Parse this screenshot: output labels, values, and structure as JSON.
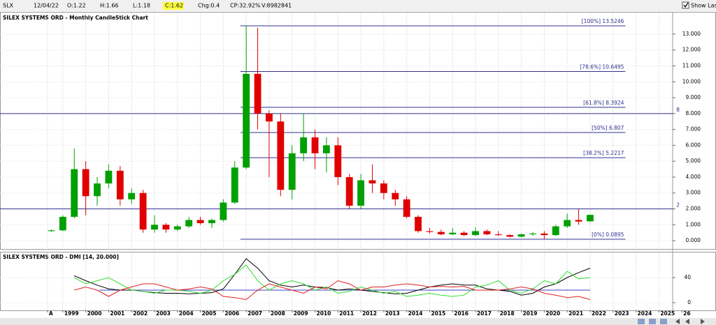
{
  "header": {
    "symbol": "SLX",
    "date": "12/04/22",
    "open": "O:1.22",
    "high": "H:1.66",
    "low": "L:1.18",
    "close": "C:1.62",
    "change": "Chg:0.4",
    "change_pct": "CP:32.92%",
    "volume": "V:8982841",
    "show_last": "Show Last"
  },
  "chart_data": [
    {
      "type": "candlestick",
      "title": "SILEX SYSTEMS ORD - Monthly CandleStick Chart",
      "up_color": "#00a000",
      "down_color": "#e00000",
      "x": [
        1998.5,
        1999,
        1999.5,
        2000,
        2000.5,
        2001,
        2001.5,
        2002,
        2002.5,
        2003,
        2003.5,
        2004,
        2004.5,
        2005,
        2005.5,
        2006,
        2006.5,
        2007,
        2007.5,
        2008,
        2008.5,
        2009,
        2009.5,
        2010,
        2010.5,
        2011,
        2011.5,
        2012,
        2012.5,
        2013,
        2013.5,
        2014,
        2014.5,
        2015,
        2015.5,
        2016,
        2016.5,
        2017,
        2017.5,
        2018,
        2018.5,
        2019,
        2019.5,
        2020,
        2020.5,
        2021,
        2021.5,
        2022
      ],
      "open": [
        0.6,
        0.65,
        1.5,
        4.5,
        2.8,
        3.6,
        4.4,
        2.6,
        3.0,
        0.7,
        1.0,
        0.7,
        0.9,
        1.3,
        1.1,
        1.3,
        2.4,
        4.6,
        10.5,
        8.0,
        7.5,
        3.2,
        5.5,
        6.5,
        5.5,
        6.0,
        4.0,
        2.2,
        3.8,
        3.6,
        3.0,
        2.6,
        1.5,
        0.6,
        0.55,
        0.4,
        0.5,
        0.35,
        0.6,
        0.4,
        0.35,
        0.25,
        0.4,
        0.45,
        0.35,
        0.9,
        1.3,
        1.22
      ],
      "high": [
        0.7,
        1.6,
        5.8,
        5.0,
        4.0,
        4.8,
        4.7,
        3.3,
        3.2,
        1.6,
        1.1,
        1.0,
        1.5,
        1.5,
        1.4,
        2.6,
        5.0,
        13.5246,
        13.4,
        8.2,
        8.0,
        6.0,
        8.0,
        7.0,
        6.5,
        6.5,
        4.2,
        4.2,
        4.8,
        3.8,
        3.2,
        2.8,
        1.6,
        0.8,
        0.7,
        0.8,
        0.6,
        0.85,
        0.7,
        0.6,
        0.4,
        0.45,
        0.55,
        0.6,
        1.0,
        1.7,
        2.0,
        1.66
      ],
      "low": [
        0.55,
        0.6,
        1.4,
        1.6,
        2.2,
        3.3,
        2.2,
        2.3,
        0.5,
        0.5,
        0.5,
        0.6,
        0.8,
        1.0,
        0.8,
        1.2,
        2.3,
        4.5,
        7.0,
        4.0,
        2.8,
        2.6,
        5.0,
        4.5,
        4.3,
        3.5,
        2.0,
        2.0,
        3.0,
        2.6,
        2.2,
        1.4,
        0.5,
        0.45,
        0.35,
        0.35,
        0.3,
        0.3,
        0.35,
        0.3,
        0.2,
        0.2,
        0.3,
        0.0895,
        0.3,
        0.8,
        1.0,
        1.18
      ],
      "close": [
        0.65,
        1.5,
        4.5,
        2.8,
        3.6,
        4.4,
        2.6,
        3.0,
        0.7,
        1.0,
        0.7,
        0.9,
        1.3,
        1.1,
        1.3,
        2.4,
        4.6,
        10.5,
        8.0,
        7.5,
        3.2,
        5.5,
        6.5,
        5.5,
        6.0,
        4.0,
        2.2,
        3.8,
        3.6,
        3.0,
        2.6,
        1.5,
        0.6,
        0.55,
        0.4,
        0.5,
        0.35,
        0.6,
        0.4,
        0.35,
        0.25,
        0.4,
        0.45,
        0.35,
        0.9,
        1.3,
        1.2,
        1.62
      ],
      "xlim": [
        1996.26,
        2025.6
      ],
      "xticks": [
        {
          "value": 1998.33,
          "label": "A"
        },
        1999,
        2000,
        2001,
        2002,
        2003,
        2004,
        2005,
        2006,
        2007,
        2008,
        2009,
        2010,
        2011,
        2012,
        2013,
        2014,
        2015,
        2016,
        2017,
        2018,
        2019,
        2020,
        2021,
        2022,
        2023,
        2024,
        2025,
        {
          "value": 2026,
          "label": "26"
        }
      ],
      "ylim": [
        -0.48,
        13.83
      ],
      "yticks": [
        {
          "value": 0,
          "label": "0.000"
        },
        {
          "value": 1,
          "label": "1.000"
        },
        {
          "value": 2,
          "label": "2.000"
        },
        {
          "value": 3,
          "label": "3.000"
        },
        {
          "value": 4,
          "label": "4.000"
        },
        {
          "value": 5,
          "label": "5.000"
        },
        {
          "value": 6,
          "label": "6.000"
        },
        {
          "value": 7,
          "label": "7.000"
        },
        {
          "value": 8,
          "label": "8.000"
        },
        {
          "value": 9,
          "label": "9.000"
        },
        {
          "value": 10,
          "label": "10.000"
        },
        {
          "value": 11,
          "label": "11.000"
        },
        {
          "value": 12,
          "label": "12.000"
        },
        {
          "value": 13,
          "label": "13.000"
        }
      ],
      "levels": [
        {
          "label": "[100%] 13.5246",
          "value": 13.5246
        },
        {
          "label": "[78.6%] 10.6495",
          "value": 10.6495
        },
        {
          "label": "[61.8%] 8.3924",
          "value": 8.3924
        },
        {
          "label": "[50%] 6.807",
          "value": 6.807
        },
        {
          "label": "[38.2%] 5.2217",
          "value": 5.2217
        },
        {
          "label": "[0%] 0.0895",
          "value": 0.0895
        }
      ],
      "level_xlim": [
        2006.75,
        2023.54
      ],
      "level_color": "#303090",
      "hlines": [
        8,
        2
      ],
      "hline_color": "#303090",
      "grid": true
    },
    {
      "type": "line",
      "title": "SILEX SYSTEMS ORD - DMI [14, 20.000]",
      "x": [
        1999.5,
        2000,
        2000.5,
        2001,
        2001.5,
        2002,
        2002.5,
        2003,
        2003.5,
        2004,
        2004.5,
        2005,
        2005.5,
        2006,
        2006.5,
        2007,
        2007.5,
        2008,
        2008.5,
        2009,
        2009.5,
        2010,
        2010.5,
        2011,
        2011.5,
        2012,
        2012.5,
        2013,
        2013.5,
        2014,
        2014.5,
        2015,
        2015.5,
        2016,
        2016.5,
        2017,
        2017.5,
        2018,
        2018.5,
        2019,
        2019.5,
        2020,
        2020.5,
        2021,
        2021.5,
        2022
      ],
      "series": [
        {
          "color": "#000000",
          "values": [
            43,
            35,
            28,
            22,
            20,
            20,
            18,
            16,
            15,
            15,
            14,
            15,
            16,
            22,
            45,
            70,
            55,
            35,
            28,
            25,
            28,
            25,
            24,
            20,
            22,
            20,
            18,
            16,
            14,
            15,
            20,
            25,
            28,
            30,
            28,
            28,
            22,
            20,
            18,
            12,
            15,
            25,
            30,
            40,
            48,
            55
          ]
        },
        {
          "color": "#30e030",
          "values": [
            40,
            30,
            35,
            40,
            30,
            20,
            18,
            15,
            20,
            20,
            18,
            15,
            20,
            35,
            45,
            60,
            35,
            20,
            30,
            35,
            30,
            20,
            25,
            15,
            18,
            25,
            20,
            15,
            18,
            10,
            12,
            15,
            12,
            10,
            12,
            25,
            28,
            35,
            20,
            15,
            22,
            35,
            30,
            50,
            38,
            40
          ]
        },
        {
          "color": "#e02020",
          "values": [
            20,
            25,
            20,
            10,
            20,
            25,
            30,
            30,
            25,
            20,
            22,
            25,
            22,
            10,
            8,
            5,
            20,
            30,
            25,
            20,
            15,
            25,
            22,
            35,
            30,
            20,
            25,
            25,
            28,
            30,
            28,
            25,
            26,
            25,
            26,
            20,
            20,
            20,
            22,
            25,
            22,
            15,
            12,
            8,
            10,
            5
          ]
        }
      ],
      "xlim": [
        1996.26,
        2025.6
      ],
      "ylim": [
        -8.9,
        75.6
      ],
      "yticks": [
        0,
        40
      ],
      "reference_line": {
        "value": 20,
        "color": "#4040c0"
      },
      "reference_x": [
        2000.6,
        2022
      ]
    }
  ]
}
